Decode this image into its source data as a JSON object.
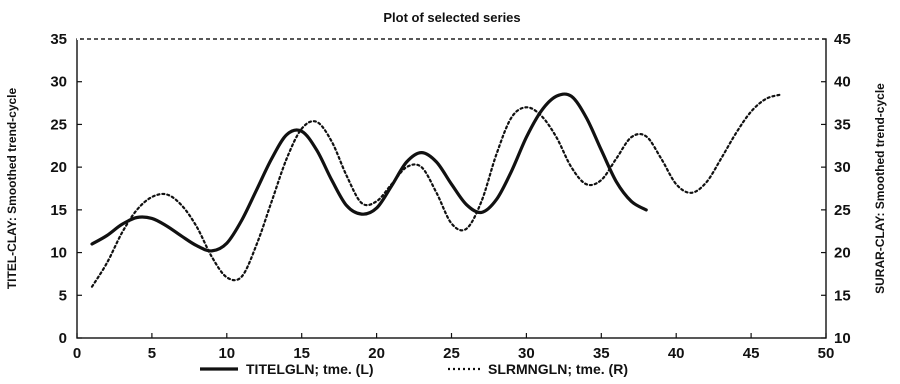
{
  "chart_data": {
    "type": "line",
    "title": "Plot of selected series",
    "xlabel": "",
    "ylabel_left": "TITEL-CLAY: Smoothed trend-cycle",
    "ylabel_right": "SURAR-CLAY: Smoothed trend-cycle",
    "xlim": [
      0,
      50
    ],
    "ylim_left": [
      0,
      35
    ],
    "ylim_right": [
      10,
      45
    ],
    "x_ticks": [
      "0",
      "5",
      "10",
      "15",
      "20",
      "25",
      "30",
      "35",
      "40",
      "45",
      "50"
    ],
    "y_ticks_left": [
      "0",
      "5",
      "10",
      "15",
      "20",
      "25",
      "30",
      "35"
    ],
    "y_ticks_right": [
      "10",
      "15",
      "20",
      "25",
      "30",
      "35",
      "40",
      "45"
    ],
    "grid": false,
    "legend_position": "bottom",
    "series": [
      {
        "name": "TITELGLN; tme. (L)",
        "axis": "left",
        "style": "solid",
        "color": "#111111",
        "x": [
          1,
          2,
          3,
          4,
          5,
          6,
          7,
          8,
          9,
          10,
          11,
          12,
          13,
          14,
          15,
          16,
          17,
          18,
          19,
          20,
          21,
          22,
          23,
          24,
          25,
          26,
          27,
          28,
          29,
          30,
          31,
          32,
          33,
          34,
          35,
          36,
          37,
          38
        ],
        "y": [
          11.0,
          12.0,
          13.3,
          14.1,
          14.0,
          13.1,
          11.9,
          10.8,
          10.2,
          11.1,
          13.8,
          17.4,
          21.0,
          23.8,
          24.2,
          22.0,
          18.5,
          15.5,
          14.5,
          15.2,
          17.8,
          20.6,
          21.7,
          20.6,
          18.0,
          15.6,
          14.7,
          16.2,
          19.5,
          23.5,
          26.6,
          28.3,
          28.3,
          25.8,
          22.0,
          18.3,
          16.0,
          15.0
        ]
      },
      {
        "name": "SLRMNGLN; tme. (R)",
        "axis": "right",
        "style": "dotted",
        "color": "#111111",
        "x": [
          1,
          2,
          3,
          4,
          5,
          6,
          7,
          8,
          9,
          10,
          11,
          12,
          13,
          14,
          15,
          16,
          17,
          18,
          19,
          20,
          21,
          22,
          23,
          24,
          25,
          26,
          27,
          28,
          29,
          30,
          31,
          32,
          33,
          34,
          35,
          36,
          37,
          38,
          39,
          40,
          41,
          42,
          43,
          44,
          45,
          46,
          47
        ],
        "y": [
          16.0,
          18.8,
          22.3,
          25.0,
          26.5,
          26.8,
          25.5,
          23.0,
          19.5,
          17.1,
          17.2,
          21.0,
          26.0,
          31.0,
          34.5,
          35.3,
          33.0,
          29.0,
          25.8,
          26.0,
          28.0,
          30.0,
          30.0,
          27.0,
          23.4,
          22.8,
          26.0,
          31.5,
          35.8,
          37.0,
          36.0,
          33.5,
          30.0,
          28.0,
          28.5,
          31.0,
          33.5,
          33.6,
          31.0,
          28.0,
          27.0,
          28.2,
          31.0,
          34.0,
          36.5,
          38.0,
          38.5
        ]
      }
    ]
  }
}
